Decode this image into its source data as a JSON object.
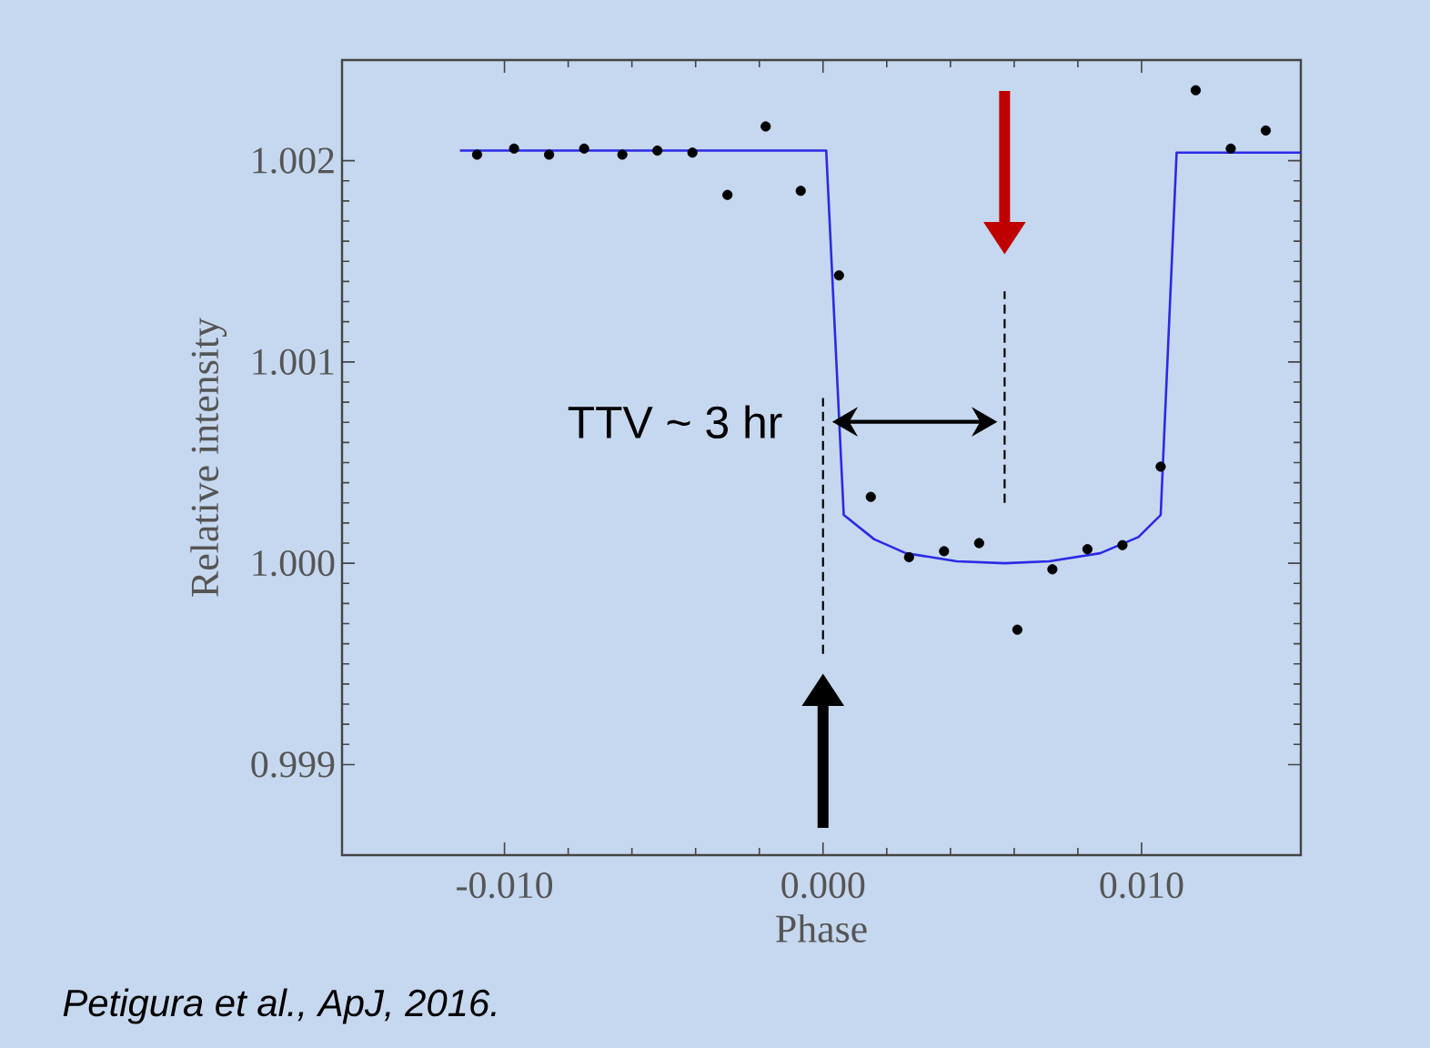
{
  "chart_data": {
    "type": "scatter",
    "xlabel": "Phase",
    "ylabel": "Relative intensity",
    "xlim": [
      -0.0151,
      0.015
    ],
    "ylim": [
      0.99855,
      1.0025
    ],
    "xticks": [
      {
        "value": -0.01,
        "label": "-0.010"
      },
      {
        "value": 0,
        "label": "0.000"
      },
      {
        "value": 0.01,
        "label": "0.010"
      }
    ],
    "yticks": [
      {
        "value": 0.999,
        "label": "0.999"
      },
      {
        "value": 1.0,
        "label": "1.000"
      },
      {
        "value": 1.001,
        "label": "1.001"
      },
      {
        "value": 1.002,
        "label": "1.002"
      }
    ],
    "grid": false,
    "series": [
      {
        "type": "line",
        "color": "#2a2ae6",
        "marker": "none",
        "line_style": "solid",
        "x": [
          -0.0114,
          0.0001,
          0.00065,
          0.0016,
          0.0026,
          0.0042,
          0.0057,
          0.0071,
          0.0087,
          0.0099,
          0.0106,
          0.0111,
          0.015
        ],
        "values": [
          1.00205,
          1.00205,
          1.00024,
          1.00012,
          1.00005,
          1.00001,
          1.0,
          1.00001,
          1.00005,
          1.00013,
          1.00024,
          1.00204,
          1.00204
        ]
      },
      {
        "color": "#000000",
        "marker": "circle",
        "x": [
          -0.01086,
          -0.0097,
          -0.0086,
          -0.0075,
          -0.0063,
          -0.0052,
          -0.0041,
          -0.003,
          -0.0018,
          -0.0007,
          0.0005,
          0.0015,
          0.0027,
          0.0038,
          0.0049,
          0.0061,
          0.0072,
          0.0083,
          0.0094,
          0.0106,
          0.0117,
          0.0128,
          0.0139
        ],
        "values": [
          1.00203,
          1.00206,
          1.00203,
          1.00206,
          1.00203,
          1.00205,
          1.00204,
          1.00183,
          1.00217,
          1.00185,
          1.00143,
          1.00033,
          1.00003,
          1.00006,
          1.0001,
          0.99967,
          0.99997,
          1.00007,
          1.00009,
          1.00048,
          1.00235,
          1.00206,
          1.00215
        ]
      }
    ],
    "ref_lines": [
      {
        "axis": "x",
        "value": 0,
        "color": "#000000",
        "line_style": "dashed"
      },
      {
        "axis": "x",
        "value": 0.0057,
        "color": "#000000",
        "line_style": "dashed"
      }
    ],
    "annotations": [
      "TTV ~ 3 hr",
      "Petigura et al., ApJ, 2016."
    ]
  }
}
